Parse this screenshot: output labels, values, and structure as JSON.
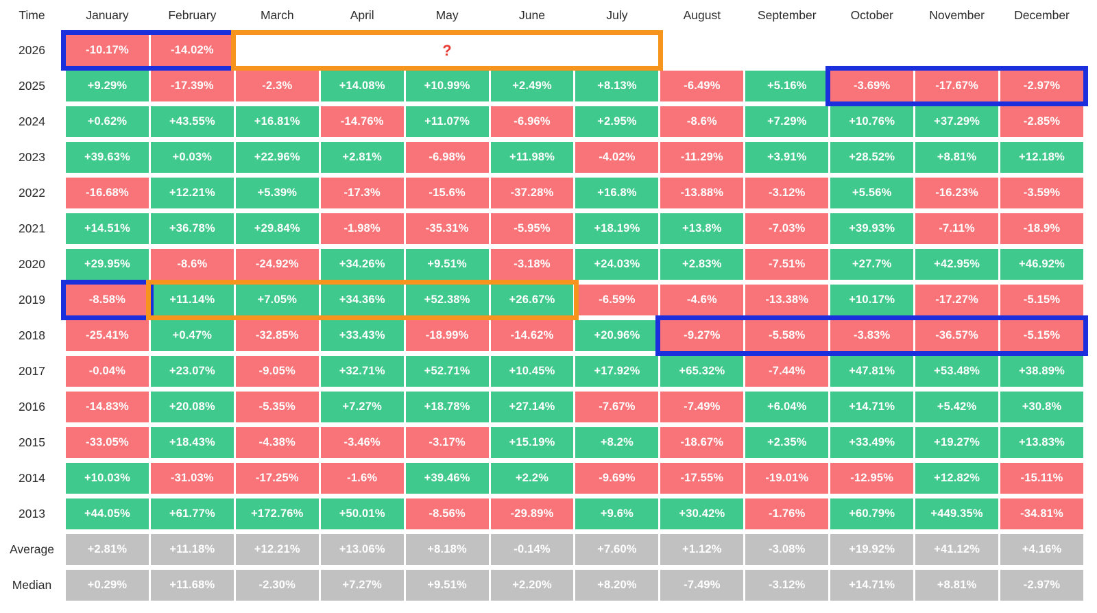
{
  "colors": {
    "positive": "#3fc98c",
    "negative": "#f87478",
    "neutral": "#c1c1c1",
    "annotation_blue": "#1b2fdd",
    "annotation_orange": "#f7941d",
    "question_mark": "#e73b33",
    "label_text": "#2b2b2b",
    "cell_text": "#ffffff"
  },
  "chart_data": {
    "type": "heatmap",
    "corner_label": "Time",
    "x_categories": [
      "January",
      "February",
      "March",
      "April",
      "May",
      "June",
      "July",
      "August",
      "September",
      "October",
      "November",
      "December"
    ],
    "y_categories": [
      "2026",
      "2025",
      "2024",
      "2023",
      "2022",
      "2021",
      "2020",
      "2019",
      "2018",
      "2017",
      "2016",
      "2015",
      "2014",
      "2013",
      "Average",
      "Median"
    ],
    "color_rule": "green = positive month, red = negative month, gray = summary rows, white text",
    "series": [
      {
        "name": "2026",
        "summary": false,
        "values": [
          "-10.17%",
          "-14.02%",
          null,
          null,
          null,
          null,
          null,
          null,
          null,
          null,
          null,
          null
        ]
      },
      {
        "name": "2025",
        "summary": false,
        "values": [
          "+9.29%",
          "-17.39%",
          "-2.3%",
          "+14.08%",
          "+10.99%",
          "+2.49%",
          "+8.13%",
          "-6.49%",
          "+5.16%",
          "-3.69%",
          "-17.67%",
          "-2.97%"
        ]
      },
      {
        "name": "2024",
        "summary": false,
        "values": [
          "+0.62%",
          "+43.55%",
          "+16.81%",
          "-14.76%",
          "+11.07%",
          "-6.96%",
          "+2.95%",
          "-8.6%",
          "+7.29%",
          "+10.76%",
          "+37.29%",
          "-2.85%"
        ]
      },
      {
        "name": "2023",
        "summary": false,
        "values": [
          "+39.63%",
          "+0.03%",
          "+22.96%",
          "+2.81%",
          "-6.98%",
          "+11.98%",
          "-4.02%",
          "-11.29%",
          "+3.91%",
          "+28.52%",
          "+8.81%",
          "+12.18%"
        ]
      },
      {
        "name": "2022",
        "summary": false,
        "values": [
          "-16.68%",
          "+12.21%",
          "+5.39%",
          "-17.3%",
          "-15.6%",
          "-37.28%",
          "+16.8%",
          "-13.88%",
          "-3.12%",
          "+5.56%",
          "-16.23%",
          "-3.59%"
        ]
      },
      {
        "name": "2021",
        "summary": false,
        "values": [
          "+14.51%",
          "+36.78%",
          "+29.84%",
          "-1.98%",
          "-35.31%",
          "-5.95%",
          "+18.19%",
          "+13.8%",
          "-7.03%",
          "+39.93%",
          "-7.11%",
          "-18.9%"
        ]
      },
      {
        "name": "2020",
        "summary": false,
        "values": [
          "+29.95%",
          "-8.6%",
          "-24.92%",
          "+34.26%",
          "+9.51%",
          "-3.18%",
          "+24.03%",
          "+2.83%",
          "-7.51%",
          "+27.7%",
          "+42.95%",
          "+46.92%"
        ]
      },
      {
        "name": "2019",
        "summary": false,
        "values": [
          "-8.58%",
          "+11.14%",
          "+7.05%",
          "+34.36%",
          "+52.38%",
          "+26.67%",
          "-6.59%",
          "-4.6%",
          "-13.38%",
          "+10.17%",
          "-17.27%",
          "-5.15%"
        ]
      },
      {
        "name": "2018",
        "summary": false,
        "values": [
          "-25.41%",
          "+0.47%",
          "-32.85%",
          "+33.43%",
          "-18.99%",
          "-14.62%",
          "+20.96%",
          "-9.27%",
          "-5.58%",
          "-3.83%",
          "-36.57%",
          "-5.15%"
        ]
      },
      {
        "name": "2017",
        "summary": false,
        "values": [
          "-0.04%",
          "+23.07%",
          "-9.05%",
          "+32.71%",
          "+52.71%",
          "+10.45%",
          "+17.92%",
          "+65.32%",
          "-7.44%",
          "+47.81%",
          "+53.48%",
          "+38.89%"
        ]
      },
      {
        "name": "2016",
        "summary": false,
        "values": [
          "-14.83%",
          "+20.08%",
          "-5.35%",
          "+7.27%",
          "+18.78%",
          "+27.14%",
          "-7.67%",
          "-7.49%",
          "+6.04%",
          "+14.71%",
          "+5.42%",
          "+30.8%"
        ]
      },
      {
        "name": "2015",
        "summary": false,
        "values": [
          "-33.05%",
          "+18.43%",
          "-4.38%",
          "-3.46%",
          "-3.17%",
          "+15.19%",
          "+8.2%",
          "-18.67%",
          "+2.35%",
          "+33.49%",
          "+19.27%",
          "+13.83%"
        ]
      },
      {
        "name": "2014",
        "summary": false,
        "values": [
          "+10.03%",
          "-31.03%",
          "-17.25%",
          "-1.6%",
          "+39.46%",
          "+2.2%",
          "-9.69%",
          "-17.55%",
          "-19.01%",
          "-12.95%",
          "+12.82%",
          "-15.11%"
        ]
      },
      {
        "name": "2013",
        "summary": false,
        "values": [
          "+44.05%",
          "+61.77%",
          "+172.76%",
          "+50.01%",
          "-8.56%",
          "-29.89%",
          "+9.6%",
          "+30.42%",
          "-1.76%",
          "+60.79%",
          "+449.35%",
          "-34.81%"
        ]
      },
      {
        "name": "Average",
        "summary": true,
        "values": [
          "+2.81%",
          "+11.18%",
          "+12.21%",
          "+13.06%",
          "+8.18%",
          "-0.14%",
          "+7.60%",
          "+1.12%",
          "-3.08%",
          "+19.92%",
          "+41.12%",
          "+4.16%"
        ]
      },
      {
        "name": "Median",
        "summary": true,
        "values": [
          "+0.29%",
          "+11.68%",
          "-2.30%",
          "+7.27%",
          "+9.51%",
          "+2.20%",
          "+8.20%",
          "-7.49%",
          "-3.12%",
          "+14.71%",
          "+8.81%",
          "-2.97%"
        ]
      }
    ],
    "annotations": [
      {
        "row": "2026",
        "from": 0,
        "to": 1,
        "color": "blue"
      },
      {
        "row": "2026",
        "from": 2,
        "to": 6,
        "color": "orange",
        "label": "?",
        "filled": true
      },
      {
        "row": "2025",
        "from": 9,
        "to": 11,
        "color": "blue"
      },
      {
        "row": "2019",
        "from": 0,
        "to": 0,
        "color": "blue"
      },
      {
        "row": "2019",
        "from": 1,
        "to": 5,
        "color": "orange"
      },
      {
        "row": "2018",
        "from": 7,
        "to": 11,
        "color": "blue"
      }
    ]
  }
}
